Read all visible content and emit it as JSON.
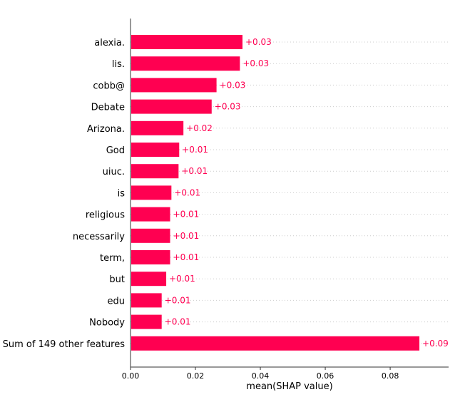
{
  "chart_data": {
    "type": "bar",
    "orientation": "horizontal",
    "categories": [
      "alexia.",
      "lis.",
      "cobb@",
      "Debate",
      "Arizona.",
      "God",
      "uiuc.",
      "is",
      "religious",
      "necessarily",
      "term,",
      "but",
      "edu",
      "Nobody",
      "Sum of 149 other features"
    ],
    "values": [
      0.0345,
      0.0337,
      0.0265,
      0.025,
      0.0163,
      0.015,
      0.0148,
      0.0126,
      0.0122,
      0.0122,
      0.0122,
      0.011,
      0.0096,
      0.0096,
      0.089
    ],
    "value_labels": [
      "+0.03",
      "+0.03",
      "+0.03",
      "+0.03",
      "+0.02",
      "+0.01",
      "+0.01",
      "+0.01",
      "+0.01",
      "+0.01",
      "+0.01",
      "+0.01",
      "+0.01",
      "+0.01",
      "+0.09"
    ],
    "xlabel": "mean(SHAP value)",
    "ylabel": "",
    "xlim": [
      0,
      0.098
    ],
    "x_ticks": [
      0.0,
      0.02,
      0.04,
      0.06,
      0.08
    ],
    "x_tick_labels": [
      "0.00",
      "0.02",
      "0.04",
      "0.06",
      "0.08"
    ],
    "grid": "dotted horizontal row guides",
    "colors": {
      "bar": "#ff0051",
      "value_label": "#ff0051",
      "grid": "#cccccc",
      "axis": "#333333"
    }
  }
}
